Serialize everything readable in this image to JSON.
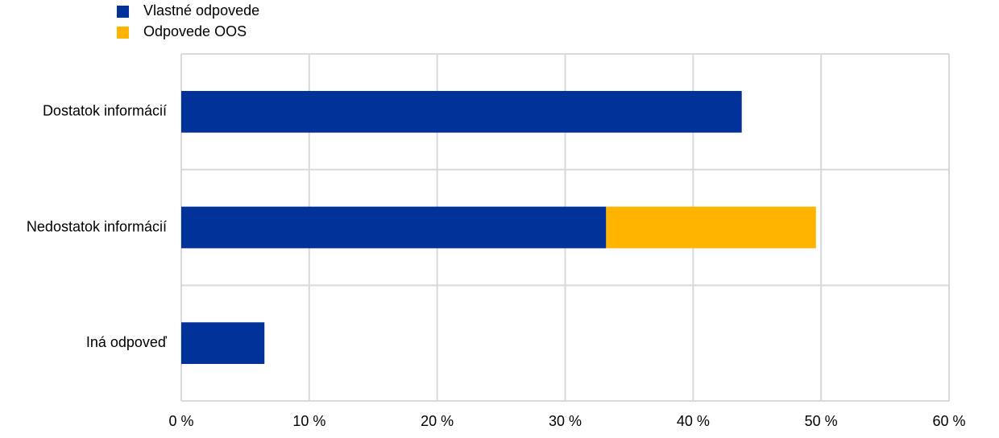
{
  "chart_data": {
    "type": "bar",
    "orientation": "horizontal",
    "stacked": true,
    "categories": [
      "Dostatok informácií",
      "Nedostatok informácií",
      "Iná odpoveď"
    ],
    "series": [
      {
        "name": "Vlastné odpovede",
        "color": "#003299",
        "values": [
          43.8,
          33.2,
          6.5
        ]
      },
      {
        "name": "Odpovede OOS",
        "color": "#ffb400",
        "values": [
          null,
          16.4,
          null
        ]
      }
    ],
    "xlim": [
      0,
      60
    ],
    "xticks": [
      {
        "value": 0,
        "label": "0 %"
      },
      {
        "value": 10,
        "label": "10 %"
      },
      {
        "value": 20,
        "label": "20 %"
      },
      {
        "value": 30,
        "label": "30 %"
      },
      {
        "value": 40,
        "label": "40 %"
      },
      {
        "value": 50,
        "label": "50 %"
      },
      {
        "value": 60,
        "label": "60 %"
      }
    ],
    "grid": true,
    "legend": "top-left"
  }
}
